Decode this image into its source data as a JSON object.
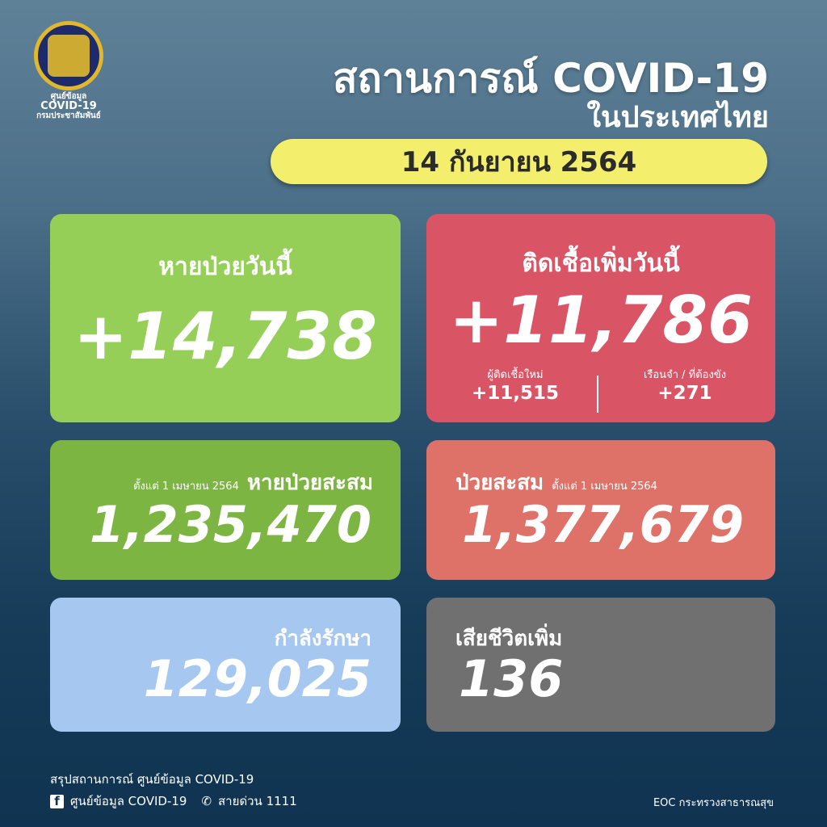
{
  "logo": {
    "line1": "ศูนย์ข้อมูล",
    "line2": "COVID-19",
    "line3": "กรมประชาสัมพันธ์"
  },
  "header": {
    "title": "สถานการณ์ COVID-19",
    "subtitle": "ในประเทศไทย",
    "date": "14 กันยายน 2564"
  },
  "recovered_today": {
    "label": "หายป่วยวันนี้",
    "value": "+14,738",
    "color": "#95cf58"
  },
  "new_cases": {
    "label": "ติดเชื้อเพิ่มวันนี้",
    "value": "+11,786",
    "color": "#d95566",
    "breakdown": [
      {
        "label": "ผู้ติดเชื้อใหม่",
        "value": "+11,515"
      },
      {
        "label": "เรือนจำ / ที่ต้องขัง",
        "value": "+271"
      }
    ]
  },
  "recovered_total": {
    "since": "ตั้งแต่ 1 เมษายน 2564",
    "label": "หายป่วยสะสม",
    "value": "1,235,470",
    "color": "#7db542"
  },
  "cases_total": {
    "label": "ป่วยสะสม",
    "since": "ตั้งแต่ 1 เมษายน 2564",
    "value": "1,377,679",
    "color": "#df7268"
  },
  "in_treatment": {
    "label": "กำลังรักษา",
    "value": "129,025",
    "color": "#a6c8f0"
  },
  "deaths": {
    "label": "เสียชีวิตเพิ่ม",
    "value": "136",
    "color": "#707070"
  },
  "footer": {
    "summary": "สรุปสถานการณ์ ศูนย์ข้อมูล COVID-19",
    "facebook": "ศูนย์ข้อมูล COVID-19",
    "hotline": "สายด่วน 1111",
    "credit": "EOC กระทรวงสาธารณสุข"
  }
}
